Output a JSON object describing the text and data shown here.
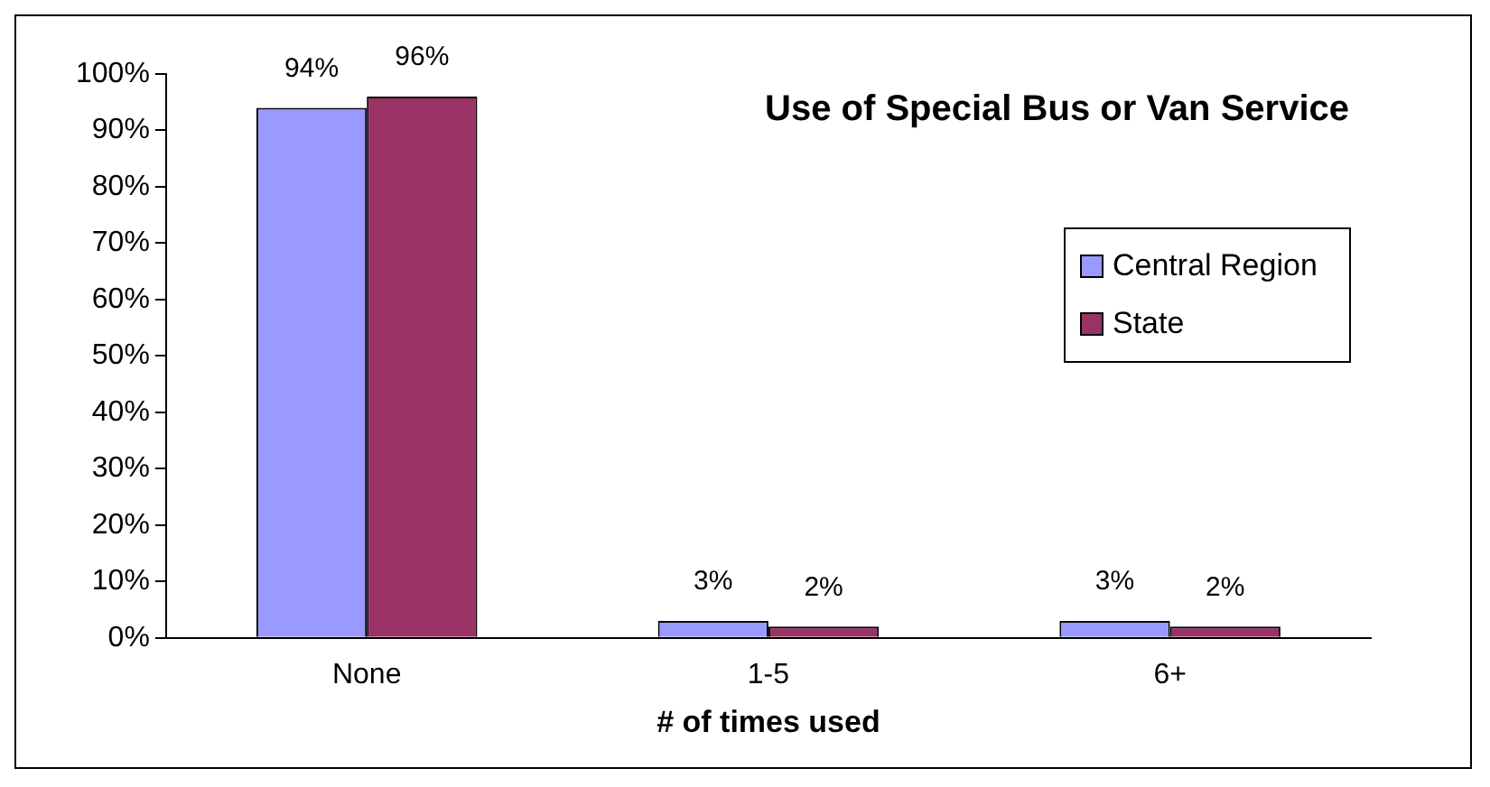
{
  "chart_data": {
    "type": "bar",
    "title": "Use of Special Bus or Van Service",
    "xlabel": "# of times used",
    "categories": [
      "None",
      "1-5",
      "6+"
    ],
    "series": [
      {
        "name": "Central Region",
        "color": "#9999ff",
        "values": [
          94,
          3,
          3
        ],
        "value_labels": [
          "94%",
          "3%",
          "3%"
        ]
      },
      {
        "name": "State",
        "color": "#993366",
        "values": [
          96,
          2,
          2
        ],
        "value_labels": [
          "96%",
          "2%",
          "2%"
        ]
      }
    ],
    "ylim": [
      0,
      100
    ],
    "yticks": [
      {
        "value": 0,
        "label": "0%"
      },
      {
        "value": 10,
        "label": "10%"
      },
      {
        "value": 20,
        "label": "20%"
      },
      {
        "value": 30,
        "label": "30%"
      },
      {
        "value": 40,
        "label": "40%"
      },
      {
        "value": 50,
        "label": "50%"
      },
      {
        "value": 60,
        "label": "60%"
      },
      {
        "value": 70,
        "label": "70%"
      },
      {
        "value": 80,
        "label": "80%"
      },
      {
        "value": 90,
        "label": "90%"
      },
      {
        "value": 100,
        "label": "100%"
      }
    ],
    "grid": false,
    "legend": "top right"
  }
}
